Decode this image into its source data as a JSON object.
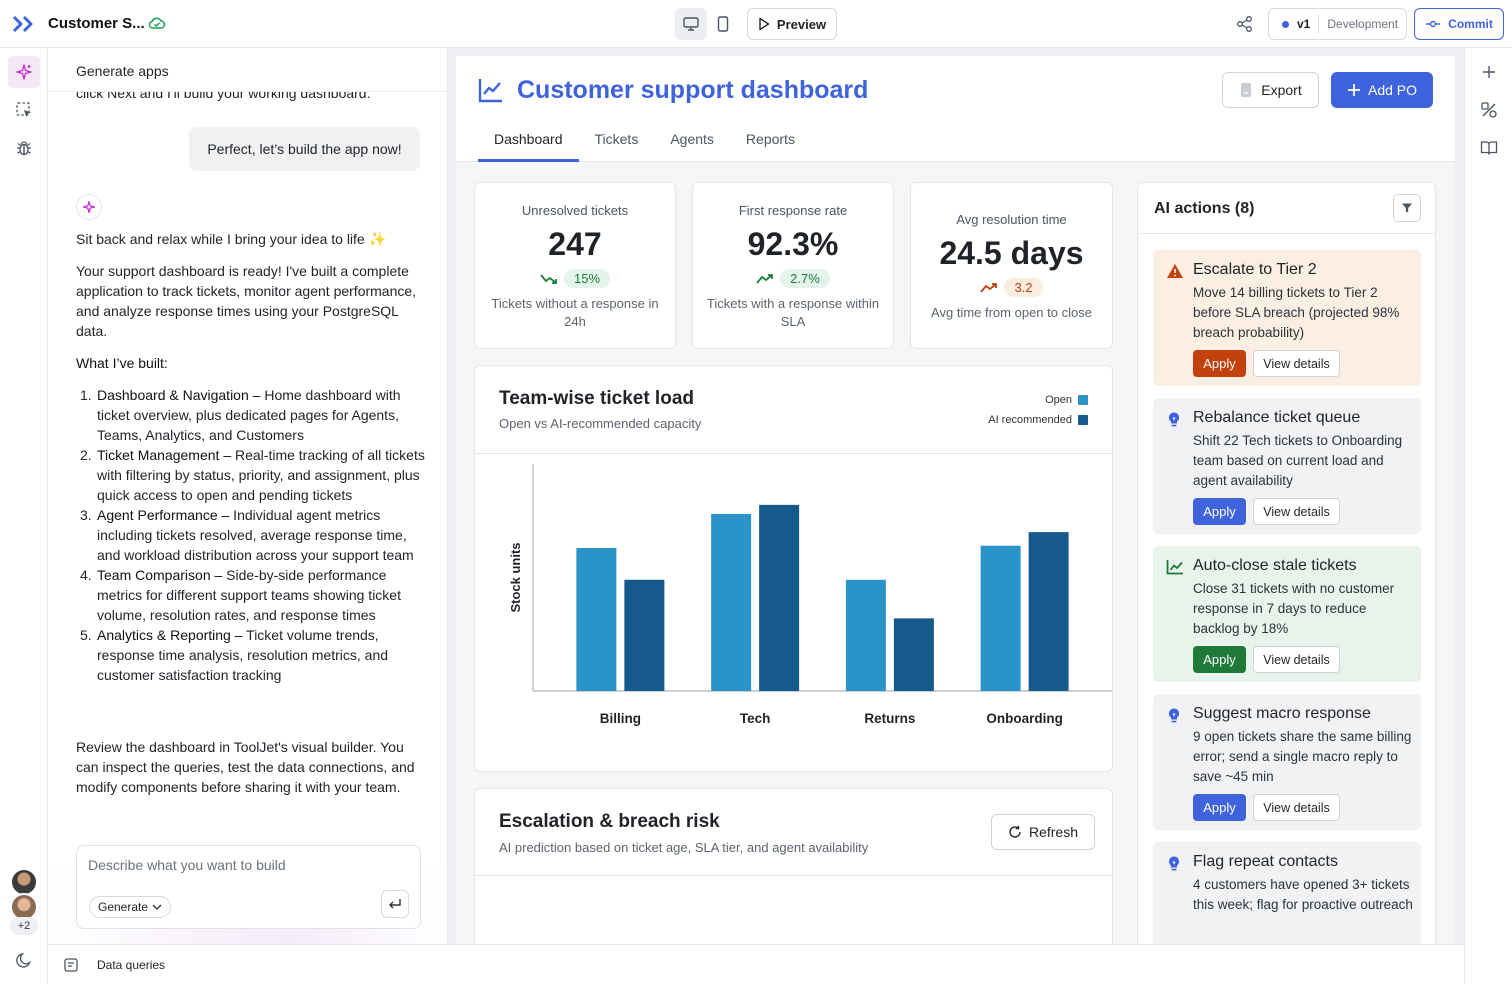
{
  "topbar": {
    "app_name": "Customer S...",
    "preview_label": "Preview",
    "version": "v1",
    "environment": "Development",
    "commit_label": "Commit"
  },
  "chat": {
    "header": "Generate apps",
    "cut_text": "click Next and I'll build your working dashboard.",
    "user_message": "Perfect, let’s build the app now!",
    "intro": "Sit back and relax while I bring your idea to life",
    "intro_emoji": "✨",
    "summary": "Your support dashboard is ready! I've built a complete application to track tickets, monitor agent performance, and analyze response times using your PostgreSQL data.",
    "built_heading": "What I’ve built:",
    "built_items": [
      {
        "num": "1.",
        "title": "Dashboard & Navigation –",
        "text": " Home dashboard with ticket overview, plus dedicated pages for Agents, Teams, Analytics, and Customers"
      },
      {
        "num": "2.",
        "title": "Ticket Management –",
        "text": " Real-time tracking of all tickets with filtering by status, priority, and assignment, plus quick access to open and pending tickets"
      },
      {
        "num": "3.",
        "title": "Agent Performance –",
        "text": " Individual agent metrics including tickets resolved, average response time, and workload distribution across your support team"
      },
      {
        "num": "4.",
        "title": "Team Comparison –",
        "text": " Side-by-side performance metrics for different support teams showing ticket volume, resolution rates, and response times"
      },
      {
        "num": "5.",
        "title": "Analytics & Reporting –",
        "text": " Ticket volume trends, response time analysis, resolution metrics, and customer satisfaction tracking"
      }
    ],
    "closing": "Review the dashboard in ToolJet's visual builder. You can inspect the queries, test the data connections, and modify components before sharing it with your team.",
    "input_placeholder": "Describe what you want to build",
    "generate_label": "Generate",
    "avatar_extra": "+2"
  },
  "bottombar": {
    "data_queries": "Data queries"
  },
  "dashboard": {
    "title": "Customer support dashboard",
    "export_label": "Export",
    "add_label": "Add PO",
    "tabs": [
      "Dashboard",
      "Tickets",
      "Agents",
      "Reports"
    ],
    "kpis": [
      {
        "label": "Unresolved tickets",
        "value": "247",
        "change": "15%",
        "trend": "down",
        "sub": "Tickets without a response in 24h"
      },
      {
        "label": "First response rate",
        "value": "92.3%",
        "change": "2.7%",
        "trend": "up",
        "sub": "Tickets with a response within SLA"
      },
      {
        "label": "Avg resolution time",
        "value": "24.5 days",
        "change": "3.2",
        "trend": "up",
        "sub": "Avg time from open to close"
      }
    ],
    "team_load": {
      "title": "Team-wise ticket load",
      "subtitle": "Open vs AI-recommended capacity"
    },
    "escalation": {
      "title": "Escalation & breach risk",
      "subtitle": "AI prediction based on ticket age, SLA tier, and agent availability",
      "refresh_label": "Refresh"
    },
    "ai_actions": {
      "title": "AI actions (8)",
      "apply_label": "Apply",
      "details_label": "View details",
      "items": [
        {
          "title": "Escalate to Tier 2",
          "desc": "Move 14 billing tickets to Tier 2 before SLA breach (projected 98% breach probability)",
          "kind": "warn",
          "icon": "warning-icon"
        },
        {
          "title": "Rebalance ticket queue",
          "desc": "Shift 22 Tech tickets to Onboarding team based on current load and agent availability",
          "kind": "gray",
          "icon": "lightbulb-icon"
        },
        {
          "title": "Auto-close stale tickets",
          "desc": "Close 31 tickets with no customer response in 7 days to reduce backlog by 18%",
          "kind": "green",
          "icon": "trend-icon"
        },
        {
          "title": "Suggest macro response",
          "desc": "9 open tickets share the same billing error; send a single macro reply to save ~45 min",
          "kind": "gray",
          "icon": "lightbulb-icon"
        },
        {
          "title": "Flag repeat contacts",
          "desc": "4 customers have opened 3+ tickets this week; flag for proactive outreach",
          "kind": "gray",
          "icon": "lightbulb-icon"
        }
      ]
    }
  },
  "colors": {
    "accent": "#3e63dd",
    "open_series": "#2a94c9",
    "ai_series": "#155a8a",
    "warn_apply": "#c2410c",
    "green_apply": "#1f7a3a"
  },
  "chart_data": {
    "type": "bar",
    "categories": [
      "Billing",
      "Tech",
      "Returns",
      "Onboarding"
    ],
    "series": [
      {
        "name": "Open",
        "values": [
          63,
          78,
          49,
          64
        ]
      },
      {
        "name": "AI recommended",
        "values": [
          49,
          82,
          32,
          70
        ]
      }
    ],
    "ylabel": "Stock units",
    "xlabel": "",
    "ylim": [
      0,
      100
    ],
    "legend": "top-right",
    "grid": false
  }
}
